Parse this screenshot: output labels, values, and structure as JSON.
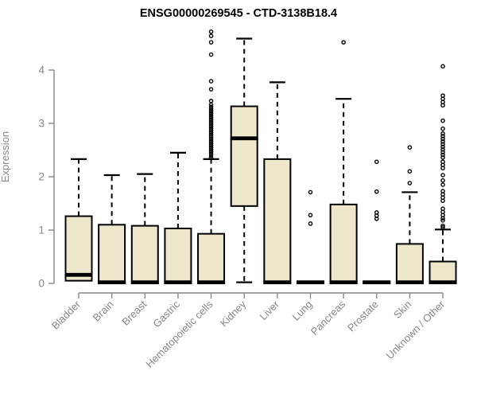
{
  "chart_data": {
    "type": "boxplot",
    "title": "ENSG00000269545 - CTD-3138B18.4",
    "ylabel": "Expression",
    "xlabel": "",
    "ylim": [
      0,
      4.75
    ],
    "yticks": [
      0,
      1,
      2,
      3,
      4
    ],
    "grid": false,
    "legend": "none",
    "categories": [
      "Bladder",
      "Brain",
      "Breast",
      "Gastric",
      "Hematopoietic cells",
      "Kidney",
      "Liver",
      "Lung",
      "Pancreas",
      "Prostate",
      "Skin",
      "Unknown / Other"
    ],
    "series": [
      {
        "category": "Bladder",
        "low": 0.05,
        "q1": 0.05,
        "median": 0.16,
        "q3": 1.26,
        "high": 2.33,
        "outliers": []
      },
      {
        "category": "Brain",
        "low": 0,
        "q1": 0,
        "median": 0.02,
        "q3": 1.1,
        "high": 2.03,
        "outliers": []
      },
      {
        "category": "Breast",
        "low": 0,
        "q1": 0,
        "median": 0.02,
        "q3": 1.08,
        "high": 2.05,
        "outliers": []
      },
      {
        "category": "Gastric",
        "low": 0,
        "q1": 0,
        "median": 0.02,
        "q3": 1.03,
        "high": 2.45,
        "outliers": []
      },
      {
        "category": "Hematopoietic cells",
        "low": 0,
        "q1": 0,
        "median": 0.02,
        "q3": 0.93,
        "high": 2.33,
        "outliers": [
          4.72,
          4.64,
          4.52,
          4.29,
          3.79,
          3.64,
          3.42,
          3.35,
          3.31,
          3.27,
          3.23,
          3.19,
          3.15,
          3.11,
          3.07,
          3.03,
          2.99,
          2.95,
          2.91,
          2.87,
          2.83,
          2.79,
          2.75,
          2.71,
          2.67,
          2.63,
          2.59,
          2.55,
          2.51,
          2.47,
          2.43,
          2.39,
          2.35
        ]
      },
      {
        "category": "Kidney",
        "low": 0.02,
        "q1": 1.45,
        "median": 2.72,
        "q3": 3.32,
        "high": 4.59,
        "outliers": []
      },
      {
        "category": "Liver",
        "low": 0,
        "q1": 0,
        "median": 0.02,
        "q3": 2.33,
        "high": 3.77,
        "outliers": []
      },
      {
        "category": "Lung",
        "low": 0,
        "q1": 0,
        "median": 0.02,
        "q3": 0.03,
        "high": 0.03,
        "outliers": [
          1.71,
          1.28,
          1.12
        ]
      },
      {
        "category": "Pancreas",
        "low": 0,
        "q1": 0,
        "median": 0.02,
        "q3": 1.48,
        "high": 3.46,
        "outliers": [
          4.52
        ]
      },
      {
        "category": "Prostate",
        "low": 0,
        "q1": 0,
        "median": 0.02,
        "q3": 0.03,
        "high": 0.03,
        "outliers": [
          2.28,
          1.72,
          1.33,
          1.27,
          1.21
        ]
      },
      {
        "category": "Skin",
        "low": 0,
        "q1": 0,
        "median": 0.02,
        "q3": 0.74,
        "high": 1.71,
        "outliers": [
          2.55,
          2.1,
          1.88
        ]
      },
      {
        "category": "Unknown / Other",
        "low": 0,
        "q1": 0,
        "median": 0.02,
        "q3": 0.41,
        "high": 1.01,
        "outliers": [
          4.07,
          3.52,
          3.46,
          3.4,
          3.34,
          3.05,
          2.9,
          2.81,
          2.76,
          2.71,
          2.66,
          2.61,
          2.56,
          2.51,
          2.46,
          2.41,
          2.36,
          2.28,
          2.22,
          2.16,
          2.03,
          1.93,
          1.85,
          1.73,
          1.67,
          1.61,
          1.55,
          1.4,
          1.34,
          1.28,
          1.22,
          1.18,
          1.08,
          1.05
        ]
      }
    ],
    "colors": {
      "box_fill": "#EDE7CB",
      "box_border": "#000000",
      "median": "#000000",
      "whisker": "#000000",
      "axis": "#878787",
      "tick_text": "#878787",
      "title_text": "#000000"
    }
  }
}
